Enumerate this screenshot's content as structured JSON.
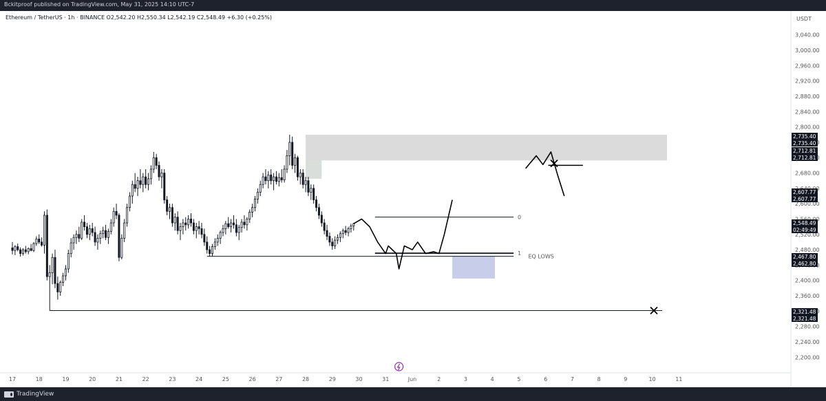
{
  "publisher_line": "Bckitproof published on TradingView.com, May 31, 2025 14:10 UTC-7",
  "legend": "Ethereum / TetherUS · 1h · BINANCE  O2,542.20  H2,550.34  L2,542.19  C2,548.49  +6.30 (+0.25%)",
  "footer_brand": "TradingView",
  "annotation_eq_lows": "EQ LOWS",
  "fib_label_0": "0",
  "fib_label_1": "1",
  "colors": {
    "candle": "#131722",
    "zone_top": "#d9d9d9",
    "zone_bottom": "#c5cae9",
    "zone_small": "#d7dcd9",
    "eq_lows": "#7b1fa2",
    "tag_bg": "#131722",
    "chrome": "#1e222d"
  },
  "icons": [
    "lightning-icon",
    "x-mark-icon",
    "tradingview-logo-icon"
  ],
  "chart_data": {
    "type": "candlestick",
    "symbol": "Ethereum / TetherUS",
    "interval": "1h",
    "exchange": "BINANCE",
    "ohlc": {
      "open": 2542.2,
      "high": 2550.34,
      "low": 2542.19,
      "close": 2548.49,
      "change": 6.3,
      "change_pct": 0.25
    },
    "y_axis": {
      "unit": "USDT",
      "ticks": [
        3040,
        3000,
        2960,
        2920,
        2880,
        2840,
        2800,
        2760,
        2720,
        2680,
        2640,
        2600,
        2560,
        2520,
        2480,
        2440,
        2400,
        2360,
        2320,
        2280,
        2240,
        2200
      ],
      "tick_labels": [
        "3,040.00",
        "3,000.00",
        "2,960.00",
        "2,920.00",
        "2,880.00",
        "2,840.00",
        "2,800.00",
        "2,760.00",
        "2,720.00",
        "2,680.00",
        "2,640.00",
        "2,600.00",
        "2,560.00",
        "2,520.00",
        "2,480.00",
        "2,440.00",
        "2,400.00",
        "2,360.00",
        "2,320.00",
        "2,280.00",
        "2,240.00",
        "2,200.00"
      ],
      "range": [
        2170,
        3070
      ]
    },
    "x_axis": {
      "labels": [
        "17",
        "18",
        "19",
        "20",
        "21",
        "22",
        "23",
        "24",
        "25",
        "26",
        "27",
        "28",
        "29",
        "30",
        "31",
        "Jun",
        "2",
        "3",
        "4",
        "5",
        "6",
        "7",
        "8",
        "9",
        "10",
        "11"
      ]
    },
    "price_tags": [
      {
        "label": "2,735.40",
        "value": 2735.4
      },
      {
        "label": "2,735.40",
        "value": 2735.4
      },
      {
        "label": "2,712.81",
        "value": 2712.81
      },
      {
        "label": "2,712.81",
        "value": 2712.81
      },
      {
        "label": "2,607.77",
        "value": 2607.77
      },
      {
        "label": "2,607.77",
        "value": 2607.77
      },
      {
        "label": "2,548.49",
        "value": 2548.49
      },
      {
        "label": "02:49:49",
        "value": 2535.0
      },
      {
        "label": "2,467.80",
        "value": 2467.8
      },
      {
        "label": "2,462.80",
        "value": 2462.8
      },
      {
        "label": "2,321.48",
        "value": 2321.48
      },
      {
        "label": "2,321.48",
        "value": 2321.48
      }
    ],
    "zones": [
      {
        "name": "supply-zone",
        "x0": 28.0,
        "x1": 8.0,
        "y0": 2712.81,
        "y1": 2780
      },
      {
        "name": "small-zone",
        "x0": 28.0,
        "x1": 28.6,
        "y0": 2665,
        "y1": 2715
      },
      {
        "name": "sweep-zone",
        "x0": 33.5,
        "x1": 35.1,
        "y0": 2405,
        "y1": 2463
      }
    ],
    "lines": [
      {
        "name": "equal-lows-line",
        "x0": 24.3,
        "x1": 35.8,
        "y": 2462.8
      },
      {
        "name": "range-low-line",
        "x0": 30.6,
        "x1": 35.8,
        "y": 2471
      },
      {
        "name": "range-high-line",
        "x0": 30.6,
        "x1": 35.8,
        "y": 2565
      },
      {
        "name": "major-low-line",
        "x0": 18.4,
        "x1": 40.4,
        "y": 2321.48
      }
    ],
    "candles": [
      [
        17.0,
        2485,
        2500,
        2468,
        2478
      ],
      [
        17.1,
        2478,
        2492,
        2466,
        2488
      ],
      [
        17.2,
        2488,
        2496,
        2476,
        2480
      ],
      [
        17.3,
        2480,
        2486,
        2462,
        2470
      ],
      [
        17.4,
        2470,
        2484,
        2465,
        2480
      ],
      [
        17.5,
        2480,
        2490,
        2470,
        2475
      ],
      [
        17.6,
        2475,
        2486,
        2468,
        2483
      ],
      [
        17.7,
        2483,
        2495,
        2476,
        2478
      ],
      [
        17.8,
        2478,
        2500,
        2474,
        2496
      ],
      [
        17.9,
        2496,
        2515,
        2490,
        2508
      ],
      [
        18.0,
        2508,
        2520,
        2495,
        2500
      ],
      [
        18.1,
        2500,
        2512,
        2488,
        2492
      ],
      [
        18.2,
        2492,
        2580,
        2470,
        2570
      ],
      [
        18.3,
        2570,
        2585,
        2400,
        2410
      ],
      [
        18.4,
        2410,
        2440,
        2321,
        2420
      ],
      [
        18.5,
        2420,
        2470,
        2390,
        2460
      ],
      [
        18.6,
        2460,
        2480,
        2380,
        2392
      ],
      [
        18.7,
        2392,
        2410,
        2350,
        2370
      ],
      [
        18.8,
        2370,
        2400,
        2360,
        2395
      ],
      [
        18.9,
        2395,
        2420,
        2385,
        2412
      ],
      [
        19.0,
        2412,
        2440,
        2400,
        2430
      ],
      [
        19.1,
        2430,
        2480,
        2420,
        2470
      ],
      [
        19.2,
        2470,
        2510,
        2460,
        2498
      ],
      [
        19.3,
        2498,
        2520,
        2480,
        2512
      ],
      [
        19.4,
        2512,
        2530,
        2495,
        2520
      ],
      [
        19.5,
        2520,
        2540,
        2500,
        2510
      ],
      [
        19.6,
        2510,
        2560,
        2505,
        2552
      ],
      [
        19.7,
        2552,
        2570,
        2530,
        2540
      ],
      [
        19.8,
        2540,
        2550,
        2510,
        2520
      ],
      [
        19.9,
        2520,
        2545,
        2505,
        2535
      ],
      [
        20.0,
        2535,
        2550,
        2515,
        2525
      ],
      [
        20.1,
        2525,
        2540,
        2490,
        2500
      ],
      [
        20.2,
        2500,
        2520,
        2480,
        2510
      ],
      [
        20.3,
        2510,
        2530,
        2495,
        2522
      ],
      [
        20.4,
        2522,
        2540,
        2510,
        2530
      ],
      [
        20.5,
        2530,
        2545,
        2505,
        2512
      ],
      [
        20.6,
        2512,
        2535,
        2495,
        2528
      ],
      [
        20.7,
        2528,
        2560,
        2520,
        2550
      ],
      [
        20.8,
        2550,
        2590,
        2540,
        2580
      ],
      [
        20.9,
        2580,
        2600,
        2560,
        2570
      ],
      [
        21.0,
        2570,
        2575,
        2450,
        2460
      ],
      [
        21.1,
        2460,
        2520,
        2455,
        2510
      ],
      [
        21.2,
        2510,
        2560,
        2500,
        2550
      ],
      [
        21.3,
        2550,
        2600,
        2540,
        2590
      ],
      [
        21.4,
        2590,
        2630,
        2580,
        2620
      ],
      [
        21.5,
        2620,
        2660,
        2600,
        2650
      ],
      [
        21.6,
        2650,
        2680,
        2630,
        2640
      ],
      [
        21.7,
        2640,
        2670,
        2620,
        2660
      ],
      [
        21.8,
        2660,
        2690,
        2640,
        2650
      ],
      [
        21.9,
        2650,
        2680,
        2630,
        2670
      ],
      [
        22.0,
        2670,
        2690,
        2640,
        2650
      ],
      [
        22.1,
        2650,
        2680,
        2635,
        2665
      ],
      [
        22.2,
        2665,
        2700,
        2650,
        2690
      ],
      [
        22.3,
        2690,
        2735,
        2680,
        2720
      ],
      [
        22.4,
        2720,
        2730,
        2690,
        2700
      ],
      [
        22.5,
        2700,
        2710,
        2660,
        2670
      ],
      [
        22.6,
        2670,
        2690,
        2640,
        2680
      ],
      [
        22.7,
        2680,
        2690,
        2600,
        2610
      ],
      [
        22.8,
        2610,
        2620,
        2570,
        2580
      ],
      [
        22.9,
        2580,
        2600,
        2560,
        2590
      ],
      [
        23.0,
        2590,
        2600,
        2540,
        2550
      ],
      [
        23.1,
        2550,
        2575,
        2530,
        2565
      ],
      [
        23.2,
        2565,
        2580,
        2520,
        2530
      ],
      [
        23.3,
        2530,
        2550,
        2505,
        2540
      ],
      [
        23.4,
        2540,
        2560,
        2520,
        2550
      ],
      [
        23.5,
        2550,
        2565,
        2530,
        2545
      ],
      [
        23.6,
        2545,
        2570,
        2535,
        2560
      ],
      [
        23.7,
        2560,
        2575,
        2540,
        2550
      ],
      [
        23.8,
        2550,
        2560,
        2520,
        2530
      ],
      [
        23.9,
        2530,
        2550,
        2510,
        2540
      ],
      [
        24.0,
        2540,
        2555,
        2520,
        2535
      ],
      [
        24.1,
        2535,
        2550,
        2510,
        2520
      ],
      [
        24.2,
        2520,
        2535,
        2490,
        2500
      ],
      [
        24.3,
        2500,
        2515,
        2470,
        2480
      ],
      [
        24.4,
        2480,
        2490,
        2462,
        2470
      ],
      [
        24.5,
        2470,
        2495,
        2462,
        2488
      ],
      [
        24.6,
        2488,
        2510,
        2480,
        2500
      ],
      [
        24.7,
        2500,
        2520,
        2490,
        2510
      ],
      [
        24.8,
        2510,
        2530,
        2495,
        2525
      ],
      [
        24.9,
        2525,
        2545,
        2515,
        2535
      ],
      [
        25.0,
        2535,
        2555,
        2520,
        2548
      ],
      [
        25.1,
        2548,
        2565,
        2535,
        2540
      ],
      [
        25.2,
        2540,
        2560,
        2525,
        2550
      ],
      [
        25.3,
        2550,
        2570,
        2535,
        2545
      ],
      [
        25.4,
        2545,
        2560,
        2515,
        2525
      ],
      [
        25.5,
        2525,
        2545,
        2505,
        2538
      ],
      [
        25.6,
        2538,
        2560,
        2525,
        2552
      ],
      [
        25.7,
        2552,
        2570,
        2535,
        2545
      ],
      [
        25.8,
        2545,
        2565,
        2530,
        2560
      ],
      [
        25.9,
        2560,
        2585,
        2550,
        2578
      ],
      [
        26.0,
        2578,
        2600,
        2565,
        2590
      ],
      [
        26.1,
        2590,
        2620,
        2580,
        2612
      ],
      [
        26.2,
        2612,
        2640,
        2600,
        2630
      ],
      [
        26.3,
        2630,
        2660,
        2620,
        2650
      ],
      [
        26.4,
        2650,
        2680,
        2640,
        2670
      ],
      [
        26.5,
        2670,
        2690,
        2650,
        2660
      ],
      [
        26.6,
        2660,
        2685,
        2640,
        2675
      ],
      [
        26.7,
        2675,
        2690,
        2650,
        2660
      ],
      [
        26.8,
        2660,
        2680,
        2635,
        2670
      ],
      [
        26.9,
        2670,
        2685,
        2650,
        2658
      ],
      [
        27.0,
        2658,
        2680,
        2645,
        2668
      ],
      [
        27.1,
        2668,
        2690,
        2655,
        2662
      ],
      [
        27.2,
        2662,
        2700,
        2655,
        2690
      ],
      [
        27.3,
        2690,
        2740,
        2680,
        2725
      ],
      [
        27.4,
        2725,
        2780,
        2700,
        2760
      ],
      [
        27.5,
        2760,
        2775,
        2690,
        2700
      ],
      [
        27.6,
        2700,
        2730,
        2680,
        2720
      ],
      [
        27.7,
        2720,
        2725,
        2660,
        2670
      ],
      [
        27.8,
        2670,
        2690,
        2650,
        2680
      ],
      [
        27.9,
        2680,
        2690,
        2640,
        2650
      ],
      [
        28.0,
        2650,
        2670,
        2630,
        2660
      ],
      [
        28.1,
        2660,
        2670,
        2620,
        2630
      ],
      [
        28.2,
        2630,
        2650,
        2610,
        2640
      ],
      [
        28.3,
        2640,
        2650,
        2600,
        2610
      ],
      [
        28.4,
        2610,
        2620,
        2580,
        2590
      ],
      [
        28.5,
        2590,
        2600,
        2560,
        2570
      ],
      [
        28.6,
        2570,
        2580,
        2540,
        2550
      ],
      [
        28.7,
        2550,
        2560,
        2520,
        2530
      ],
      [
        28.8,
        2530,
        2545,
        2505,
        2515
      ],
      [
        28.9,
        2515,
        2525,
        2490,
        2500
      ],
      [
        29.0,
        2500,
        2510,
        2480,
        2490
      ],
      [
        29.1,
        2490,
        2515,
        2482,
        2505
      ],
      [
        29.2,
        2505,
        2520,
        2495,
        2512
      ],
      [
        29.3,
        2512,
        2528,
        2500,
        2522
      ],
      [
        29.4,
        2522,
        2535,
        2510,
        2530
      ],
      [
        29.5,
        2530,
        2542,
        2518,
        2525
      ],
      [
        29.6,
        2525,
        2540,
        2515,
        2535
      ],
      [
        29.7,
        2535,
        2548,
        2525,
        2542
      ],
      [
        29.8,
        2542,
        2550,
        2530,
        2548
      ]
    ],
    "drawn_path_value_series": [
      [
        29.8,
        2548
      ],
      [
        30.1,
        2560
      ],
      [
        30.4,
        2540
      ],
      [
        30.7,
        2500
      ],
      [
        31.0,
        2470
      ],
      [
        31.1,
        2490
      ],
      [
        31.4,
        2470
      ],
      [
        31.5,
        2430
      ],
      [
        31.7,
        2490
      ],
      [
        32.0,
        2480
      ],
      [
        32.2,
        2500
      ],
      [
        32.5,
        2470
      ],
      [
        32.8,
        2475
      ],
      [
        33.0,
        2470
      ],
      [
        33.2,
        2520
      ],
      [
        33.5,
        2610
      ]
    ]
  }
}
